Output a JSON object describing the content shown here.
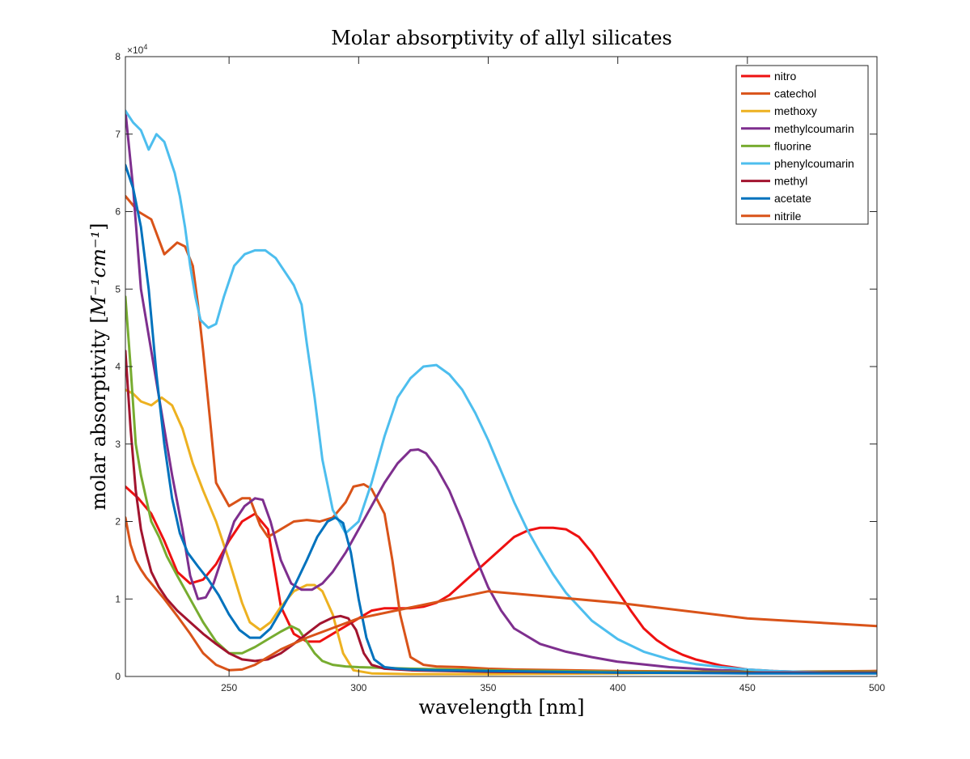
{
  "chart_data": {
    "type": "line",
    "title": "Molar absorptivity of allyl silicates",
    "xlabel": "wavelength [nm]",
    "ylabel_text": "molar absorptivity [",
    "ylabel_math": "M⁻¹cm⁻¹",
    "ylabel_close": "]",
    "y_multiplier": "×10",
    "y_multiplier_exp": "4",
    "xlim": [
      210,
      500
    ],
    "ylim": [
      0,
      8
    ],
    "xticks": [
      250,
      300,
      350,
      400,
      450,
      500
    ],
    "yticks": [
      0,
      1,
      2,
      3,
      4,
      5,
      6,
      7,
      8
    ],
    "grid": false,
    "legend_position": "top-right",
    "series": [
      {
        "name": "nitro",
        "color": "#ee1111",
        "x": [
          210,
          215,
          220,
          225,
          230,
          235,
          240,
          245,
          250,
          255,
          260,
          265,
          270,
          275,
          280,
          285,
          290,
          295,
          300,
          305,
          310,
          315,
          320,
          325,
          330,
          335,
          340,
          345,
          350,
          355,
          360,
          365,
          370,
          375,
          380,
          385,
          390,
          395,
          400,
          405,
          410,
          415,
          420,
          425,
          430,
          440,
          450,
          460,
          470,
          480,
          490,
          500
        ],
        "y": [
          2.45,
          2.3,
          2.1,
          1.75,
          1.35,
          1.2,
          1.25,
          1.45,
          1.75,
          2.0,
          2.1,
          1.9,
          0.9,
          0.55,
          0.45,
          0.45,
          0.55,
          0.65,
          0.75,
          0.85,
          0.88,
          0.88,
          0.88,
          0.9,
          0.95,
          1.05,
          1.2,
          1.35,
          1.5,
          1.65,
          1.8,
          1.88,
          1.92,
          1.92,
          1.9,
          1.8,
          1.6,
          1.35,
          1.1,
          0.85,
          0.62,
          0.47,
          0.36,
          0.28,
          0.22,
          0.14,
          0.09,
          0.07,
          0.06,
          0.06,
          0.06,
          0.07
        ]
      },
      {
        "name": "catechol",
        "color": "#d95319",
        "x": [
          210,
          215,
          220,
          225,
          230,
          233,
          236,
          238,
          240,
          243,
          245,
          250,
          255,
          258,
          262,
          265,
          270,
          275,
          280,
          285,
          290,
          295,
          298,
          302,
          305,
          310,
          313,
          316,
          320,
          325,
          330,
          340,
          350,
          360,
          380,
          400,
          450,
          500
        ],
        "y": [
          6.2,
          6.0,
          5.9,
          5.45,
          5.6,
          5.55,
          5.3,
          4.8,
          4.2,
          3.2,
          2.5,
          2.2,
          2.3,
          2.3,
          1.95,
          1.8,
          1.9,
          2.0,
          2.02,
          2.0,
          2.05,
          2.25,
          2.45,
          2.48,
          2.42,
          2.1,
          1.5,
          0.8,
          0.25,
          0.15,
          0.13,
          0.12,
          0.1,
          0.09,
          0.08,
          0.07,
          0.06,
          0.07
        ]
      },
      {
        "name": "methoxy",
        "color": "#edb120",
        "x": [
          210,
          213,
          216,
          220,
          224,
          228,
          232,
          236,
          240,
          245,
          250,
          255,
          258,
          262,
          266,
          270,
          275,
          280,
          283,
          286,
          290,
          294,
          298,
          305,
          320,
          350,
          400,
          450,
          500
        ],
        "y": [
          3.7,
          3.65,
          3.55,
          3.5,
          3.6,
          3.5,
          3.2,
          2.75,
          2.4,
          2.0,
          1.5,
          0.95,
          0.7,
          0.6,
          0.7,
          0.9,
          1.1,
          1.18,
          1.18,
          1.1,
          0.8,
          0.3,
          0.08,
          0.04,
          0.03,
          0.03,
          0.04,
          0.05,
          0.05
        ]
      },
      {
        "name": "methylcoumarin",
        "color": "#7e2f8e",
        "x": [
          210,
          213,
          216,
          220,
          224,
          228,
          232,
          235,
          238,
          241,
          244,
          248,
          252,
          256,
          260,
          263,
          266,
          270,
          274,
          278,
          282,
          286,
          290,
          295,
          300,
          305,
          310,
          315,
          320,
          323,
          326,
          330,
          335,
          340,
          345,
          350,
          355,
          360,
          370,
          380,
          390,
          400,
          420,
          440,
          460,
          480,
          500
        ],
        "y": [
          7.3,
          6.3,
          5.0,
          4.2,
          3.4,
          2.6,
          1.9,
          1.3,
          1.0,
          1.02,
          1.2,
          1.6,
          2.0,
          2.2,
          2.3,
          2.28,
          2.0,
          1.5,
          1.2,
          1.12,
          1.12,
          1.2,
          1.35,
          1.6,
          1.9,
          2.2,
          2.5,
          2.75,
          2.92,
          2.93,
          2.88,
          2.7,
          2.4,
          2.0,
          1.55,
          1.15,
          0.85,
          0.62,
          0.42,
          0.32,
          0.25,
          0.19,
          0.12,
          0.08,
          0.06,
          0.05,
          0.05
        ]
      },
      {
        "name": "fluorine",
        "color": "#77ac30",
        "x": [
          210,
          212,
          214,
          216,
          218,
          220,
          223,
          226,
          230,
          235,
          240,
          245,
          250,
          255,
          260,
          265,
          270,
          274,
          277,
          280,
          283,
          286,
          290,
          295,
          300,
          320,
          350,
          400,
          450,
          500
        ],
        "y": [
          4.9,
          4.0,
          3.0,
          2.6,
          2.3,
          2.0,
          1.8,
          1.55,
          1.3,
          1.0,
          0.7,
          0.45,
          0.3,
          0.3,
          0.38,
          0.48,
          0.58,
          0.65,
          0.6,
          0.45,
          0.3,
          0.2,
          0.15,
          0.13,
          0.12,
          0.1,
          0.08,
          0.06,
          0.06,
          0.06
        ]
      },
      {
        "name": "phenylcoumarin",
        "color": "#4dbeee",
        "x": [
          210,
          213,
          216,
          219,
          222,
          225,
          227,
          229,
          231,
          233,
          235,
          237,
          239,
          242,
          245,
          248,
          252,
          256,
          260,
          264,
          268,
          272,
          275,
          278,
          280,
          283,
          286,
          290,
          295,
          300,
          305,
          310,
          315,
          320,
          325,
          330,
          335,
          340,
          345,
          350,
          355,
          360,
          365,
          370,
          375,
          380,
          390,
          400,
          410,
          420,
          430,
          440,
          450,
          460,
          470,
          480,
          490,
          500
        ],
        "y": [
          7.3,
          7.15,
          7.05,
          6.8,
          7.0,
          6.9,
          6.7,
          6.5,
          6.2,
          5.8,
          5.3,
          4.9,
          4.6,
          4.5,
          4.55,
          4.9,
          5.3,
          5.45,
          5.5,
          5.5,
          5.4,
          5.2,
          5.05,
          4.8,
          4.3,
          3.6,
          2.8,
          2.15,
          1.85,
          2.0,
          2.5,
          3.1,
          3.6,
          3.85,
          4.0,
          4.02,
          3.9,
          3.7,
          3.4,
          3.05,
          2.65,
          2.25,
          1.9,
          1.6,
          1.32,
          1.08,
          0.72,
          0.48,
          0.32,
          0.22,
          0.16,
          0.12,
          0.09,
          0.07,
          0.06,
          0.05,
          0.05,
          0.05
        ]
      },
      {
        "name": "methyl",
        "color": "#a2142f",
        "x": [
          210,
          212,
          214,
          216,
          218,
          220,
          223,
          226,
          230,
          235,
          240,
          245,
          250,
          255,
          260,
          265,
          270,
          275,
          280,
          285,
          290,
          293,
          296,
          299,
          302,
          305,
          310,
          320,
          350,
          400,
          450,
          500
        ],
        "y": [
          4.2,
          3.2,
          2.4,
          1.9,
          1.6,
          1.35,
          1.15,
          1.0,
          0.85,
          0.7,
          0.55,
          0.42,
          0.3,
          0.22,
          0.2,
          0.22,
          0.3,
          0.42,
          0.55,
          0.68,
          0.76,
          0.78,
          0.75,
          0.6,
          0.3,
          0.15,
          0.1,
          0.08,
          0.06,
          0.05,
          0.05,
          0.05
        ]
      },
      {
        "name": "acetate",
        "color": "#0072bd",
        "x": [
          210,
          213,
          216,
          219,
          222,
          225,
          228,
          231,
          234,
          238,
          242,
          246,
          250,
          254,
          258,
          262,
          266,
          270,
          275,
          280,
          284,
          288,
          291,
          294,
          297,
          300,
          303,
          306,
          310,
          315,
          320,
          330,
          350,
          400,
          450,
          500
        ],
        "y": [
          6.6,
          6.3,
          5.8,
          5.0,
          3.9,
          3.0,
          2.3,
          1.85,
          1.6,
          1.42,
          1.25,
          1.05,
          0.8,
          0.6,
          0.5,
          0.5,
          0.62,
          0.85,
          1.15,
          1.5,
          1.8,
          2.0,
          2.05,
          1.98,
          1.6,
          1.0,
          0.5,
          0.22,
          0.12,
          0.1,
          0.09,
          0.08,
          0.07,
          0.05,
          0.04,
          0.04
        ]
      },
      {
        "name": "nitrile",
        "color": "#d95319",
        "x": [
          210,
          212,
          214,
          216,
          218,
          220,
          225,
          230,
          235,
          240,
          245,
          250,
          255,
          260,
          265,
          270,
          280,
          300,
          350,
          400,
          450,
          500
        ],
        "y": [
          2.05,
          1.7,
          1.5,
          1.38,
          1.28,
          1.2,
          1.0,
          0.78,
          0.55,
          0.3,
          0.15,
          0.08,
          0.09,
          0.15,
          0.25,
          0.35,
          0.5,
          0.75,
          1.1,
          0.95,
          0.75,
          0.65
        ]
      }
    ]
  }
}
